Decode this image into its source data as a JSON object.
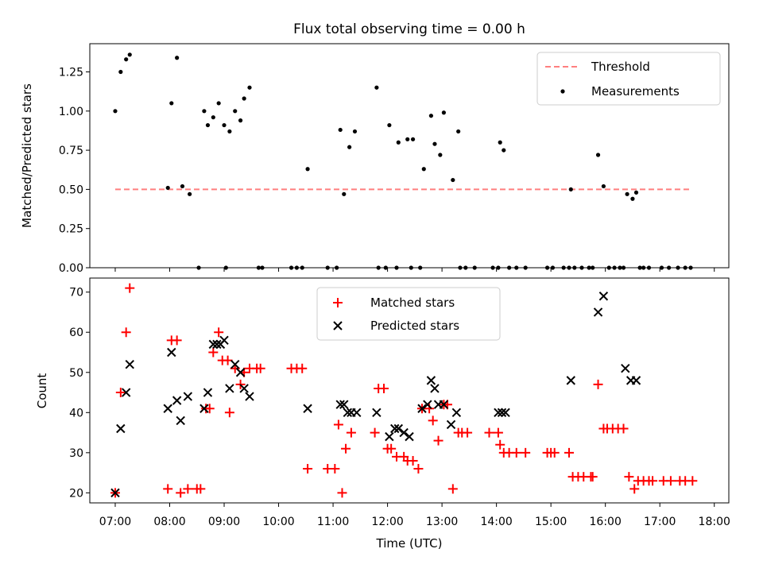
{
  "chart_data": [
    {
      "type": "scatter",
      "title": "Flux total observing time = 0.00 h",
      "xlabel": "",
      "ylabel": "Matched/Predicted stars",
      "ylim": [
        0,
        1.43
      ],
      "yticks": [
        "0.00",
        "0.25",
        "0.50",
        "0.75",
        "1.00",
        "1.25"
      ],
      "threshold": {
        "name": "Threshold",
        "value": 0.5,
        "x_from": "07:00",
        "x_to": "17:35",
        "color": "#ff7f7f"
      },
      "legend": {
        "position": "top-right",
        "entries": [
          "Threshold",
          "Measurements"
        ]
      },
      "series": [
        {
          "name": "Measurements",
          "color": "#000000",
          "points": [
            [
              "07:00",
              1.0
            ],
            [
              "07:06",
              1.25
            ],
            [
              "07:12",
              1.33
            ],
            [
              "07:16",
              1.36
            ],
            [
              "07:58",
              0.51
            ],
            [
              "08:02",
              1.05
            ],
            [
              "08:08",
              1.34
            ],
            [
              "08:14",
              0.52
            ],
            [
              "08:22",
              0.47
            ],
            [
              "08:32",
              0.0
            ],
            [
              "08:38",
              1.0
            ],
            [
              "08:42",
              0.91
            ],
            [
              "08:48",
              0.96
            ],
            [
              "08:54",
              1.05
            ],
            [
              "09:00",
              0.91
            ],
            [
              "09:02",
              0.0
            ],
            [
              "09:06",
              0.87
            ],
            [
              "09:12",
              1.0
            ],
            [
              "09:18",
              0.94
            ],
            [
              "09:22",
              1.08
            ],
            [
              "09:28",
              1.15
            ],
            [
              "09:38",
              0.0
            ],
            [
              "09:42",
              0.0
            ],
            [
              "10:14",
              0.0
            ],
            [
              "10:20",
              0.0
            ],
            [
              "10:26",
              0.0
            ],
            [
              "10:32",
              0.63
            ],
            [
              "10:54",
              0.0
            ],
            [
              "11:04",
              0.0
            ],
            [
              "11:08",
              0.88
            ],
            [
              "11:12",
              0.47
            ],
            [
              "11:18",
              0.77
            ],
            [
              "11:24",
              0.87
            ],
            [
              "11:48",
              1.15
            ],
            [
              "11:50",
              0.0
            ],
            [
              "11:58",
              0.0
            ],
            [
              "12:02",
              0.91
            ],
            [
              "12:10",
              0.0
            ],
            [
              "12:12",
              0.8
            ],
            [
              "12:22",
              0.82
            ],
            [
              "12:26",
              0.0
            ],
            [
              "12:28",
              0.82
            ],
            [
              "12:36",
              0.0
            ],
            [
              "12:40",
              0.63
            ],
            [
              "12:48",
              0.97
            ],
            [
              "12:52",
              0.79
            ],
            [
              "12:58",
              0.72
            ],
            [
              "13:02",
              0.99
            ],
            [
              "13:12",
              0.56
            ],
            [
              "13:18",
              0.87
            ],
            [
              "13:20",
              0.0
            ],
            [
              "13:26",
              0.0
            ],
            [
              "13:36",
              0.0
            ],
            [
              "13:56",
              0.0
            ],
            [
              "14:02",
              0.0
            ],
            [
              "14:04",
              0.8
            ],
            [
              "14:08",
              0.75
            ],
            [
              "14:14",
              0.0
            ],
            [
              "14:22",
              0.0
            ],
            [
              "14:32",
              0.0
            ],
            [
              "14:56",
              0.0
            ],
            [
              "15:02",
              0.0
            ],
            [
              "15:14",
              0.0
            ],
            [
              "15:20",
              0.0
            ],
            [
              "15:22",
              0.5
            ],
            [
              "15:26",
              0.0
            ],
            [
              "15:34",
              0.0
            ],
            [
              "15:42",
              0.0
            ],
            [
              "15:46",
              0.0
            ],
            [
              "15:52",
              0.72
            ],
            [
              "15:58",
              0.52
            ],
            [
              "16:04",
              0.0
            ],
            [
              "16:10",
              0.0
            ],
            [
              "16:16",
              0.0
            ],
            [
              "16:20",
              0.0
            ],
            [
              "16:24",
              0.47
            ],
            [
              "16:30",
              0.44
            ],
            [
              "16:34",
              0.48
            ],
            [
              "16:38",
              0.0
            ],
            [
              "16:42",
              0.0
            ],
            [
              "16:48",
              0.0
            ],
            [
              "17:02",
              0.0
            ],
            [
              "17:10",
              0.0
            ],
            [
              "17:20",
              0.0
            ],
            [
              "17:28",
              0.0
            ],
            [
              "17:34",
              0.0
            ]
          ]
        }
      ]
    },
    {
      "type": "scatter",
      "title": "",
      "xlabel": "Time (UTC)",
      "ylabel": "Count",
      "ylim": [
        17.5,
        73.5
      ],
      "yticks": [
        "20",
        "30",
        "40",
        "50",
        "60",
        "70"
      ],
      "xticks": [
        "07:00",
        "08:00",
        "09:00",
        "10:00",
        "11:00",
        "12:00",
        "13:00",
        "14:00",
        "15:00",
        "16:00",
        "17:00",
        "18:00"
      ],
      "legend": {
        "position": "top-center",
        "entries": [
          "Matched stars",
          "Predicted stars"
        ]
      },
      "series": [
        {
          "name": "Matched stars",
          "marker": "+",
          "color": "#ff0000",
          "points": [
            [
              "07:00",
              20
            ],
            [
              "07:06",
              45
            ],
            [
              "07:12",
              60
            ],
            [
              "07:16",
              71
            ],
            [
              "07:58",
              21
            ],
            [
              "08:02",
              58
            ],
            [
              "08:08",
              58
            ],
            [
              "08:12",
              20
            ],
            [
              "08:20",
              21
            ],
            [
              "08:30",
              21
            ],
            [
              "08:34",
              21
            ],
            [
              "08:40",
              41
            ],
            [
              "08:44",
              41
            ],
            [
              "08:48",
              55
            ],
            [
              "08:54",
              60
            ],
            [
              "08:58",
              53
            ],
            [
              "09:04",
              53
            ],
            [
              "09:06",
              40
            ],
            [
              "09:12",
              51
            ],
            [
              "09:18",
              47
            ],
            [
              "09:22",
              50
            ],
            [
              "09:28",
              51
            ],
            [
              "09:36",
              51
            ],
            [
              "09:40",
              51
            ],
            [
              "10:14",
              51
            ],
            [
              "10:20",
              51
            ],
            [
              "10:26",
              51
            ],
            [
              "10:32",
              26
            ],
            [
              "10:54",
              26
            ],
            [
              "11:02",
              26
            ],
            [
              "11:06",
              37
            ],
            [
              "11:10",
              20
            ],
            [
              "11:14",
              31
            ],
            [
              "11:20",
              35
            ],
            [
              "11:46",
              35
            ],
            [
              "11:50",
              46
            ],
            [
              "11:56",
              46
            ],
            [
              "12:00",
              31
            ],
            [
              "12:04",
              31
            ],
            [
              "12:10",
              29
            ],
            [
              "12:18",
              29
            ],
            [
              "12:22",
              28
            ],
            [
              "12:28",
              28
            ],
            [
              "12:34",
              26
            ],
            [
              "12:38",
              41
            ],
            [
              "12:46",
              41
            ],
            [
              "12:50",
              38
            ],
            [
              "12:56",
              33
            ],
            [
              "13:02",
              42
            ],
            [
              "13:06",
              42
            ],
            [
              "13:12",
              21
            ],
            [
              "13:18",
              35
            ],
            [
              "13:22",
              35
            ],
            [
              "13:28",
              35
            ],
            [
              "13:52",
              35
            ],
            [
              "14:02",
              35
            ],
            [
              "14:04",
              32
            ],
            [
              "14:08",
              30
            ],
            [
              "14:14",
              30
            ],
            [
              "14:22",
              30
            ],
            [
              "14:32",
              30
            ],
            [
              "14:56",
              30
            ],
            [
              "15:00",
              30
            ],
            [
              "15:04",
              30
            ],
            [
              "15:20",
              30
            ],
            [
              "15:24",
              24
            ],
            [
              "15:30",
              24
            ],
            [
              "15:36",
              24
            ],
            [
              "15:44",
              24
            ],
            [
              "15:46",
              24
            ],
            [
              "15:52",
              47
            ],
            [
              "15:58",
              36
            ],
            [
              "16:02",
              36
            ],
            [
              "16:08",
              36
            ],
            [
              "16:14",
              36
            ],
            [
              "16:20",
              36
            ],
            [
              "16:26",
              24
            ],
            [
              "16:32",
              21
            ],
            [
              "16:36",
              23
            ],
            [
              "16:42",
              23
            ],
            [
              "16:48",
              23
            ],
            [
              "16:52",
              23
            ],
            [
              "17:04",
              23
            ],
            [
              "17:12",
              23
            ],
            [
              "17:22",
              23
            ],
            [
              "17:28",
              23
            ],
            [
              "17:36",
              23
            ]
          ]
        },
        {
          "name": "Predicted stars",
          "marker": "x",
          "color": "#000000",
          "points": [
            [
              "07:00",
              20
            ],
            [
              "07:06",
              36
            ],
            [
              "07:12",
              45
            ],
            [
              "07:16",
              52
            ],
            [
              "07:58",
              41
            ],
            [
              "08:02",
              55
            ],
            [
              "08:08",
              43
            ],
            [
              "08:12",
              38
            ],
            [
              "08:20",
              44
            ],
            [
              "08:38",
              41
            ],
            [
              "08:42",
              45
            ],
            [
              "08:48",
              57
            ],
            [
              "08:52",
              57
            ],
            [
              "08:56",
              57
            ],
            [
              "09:00",
              58
            ],
            [
              "09:06",
              46
            ],
            [
              "09:12",
              52
            ],
            [
              "09:18",
              50
            ],
            [
              "09:22",
              46
            ],
            [
              "09:28",
              44
            ],
            [
              "10:32",
              41
            ],
            [
              "11:08",
              42
            ],
            [
              "11:12",
              42
            ],
            [
              "11:16",
              40
            ],
            [
              "11:20",
              40
            ],
            [
              "11:26",
              40
            ],
            [
              "11:48",
              40
            ],
            [
              "12:02",
              34
            ],
            [
              "12:08",
              36
            ],
            [
              "12:12",
              36
            ],
            [
              "12:18",
              35
            ],
            [
              "12:24",
              34
            ],
            [
              "12:38",
              41
            ],
            [
              "12:44",
              42
            ],
            [
              "12:48",
              48
            ],
            [
              "12:52",
              46
            ],
            [
              "12:56",
              42
            ],
            [
              "13:02",
              42
            ],
            [
              "13:10",
              37
            ],
            [
              "13:16",
              40
            ],
            [
              "14:02",
              40
            ],
            [
              "14:06",
              40
            ],
            [
              "14:10",
              40
            ],
            [
              "15:22",
              48
            ],
            [
              "15:52",
              65
            ],
            [
              "15:58",
              69
            ],
            [
              "16:22",
              51
            ],
            [
              "16:28",
              48
            ],
            [
              "16:34",
              48
            ]
          ]
        }
      ]
    }
  ]
}
